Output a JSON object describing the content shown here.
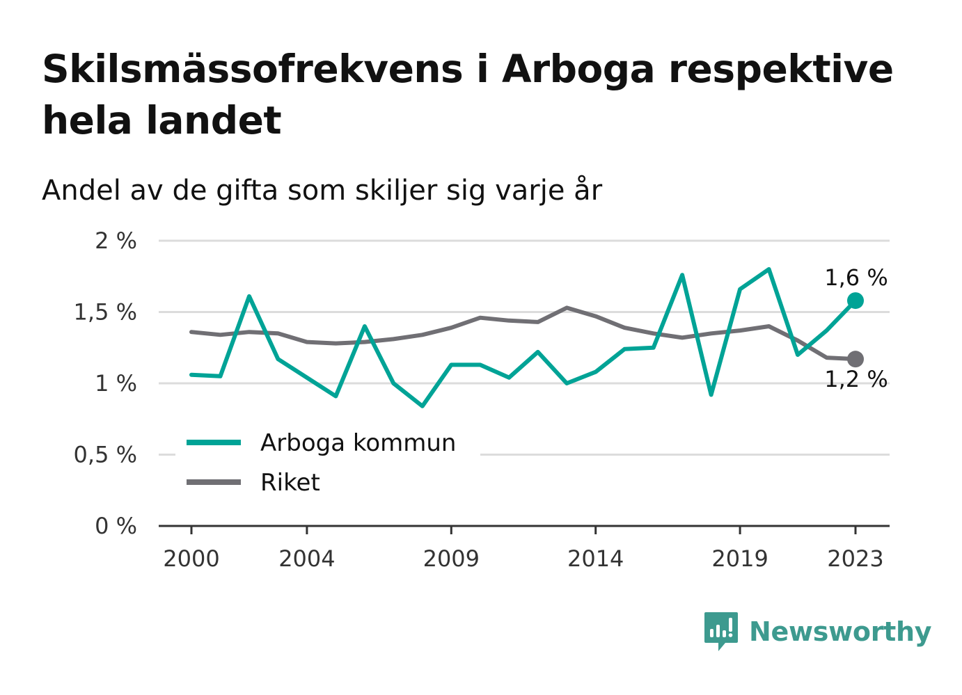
{
  "title": "Skilsmässofrekvens i Arboga respektive hela landet",
  "subtitle": "Andel av de gifta som skiljer sig varje år",
  "brand": {
    "name": "Newsworthy",
    "icon": "newsworthy-logo-icon",
    "color": "#3d9a8f"
  },
  "chart_data": {
    "type": "line",
    "x": [
      2000,
      2001,
      2002,
      2003,
      2004,
      2005,
      2006,
      2007,
      2008,
      2009,
      2010,
      2011,
      2012,
      2013,
      2014,
      2015,
      2016,
      2017,
      2018,
      2019,
      2020,
      2021,
      2022,
      2023
    ],
    "x_ticks": [
      2000,
      2004,
      2009,
      2014,
      2019,
      2023
    ],
    "x_tick_labels": [
      "2000",
      "2004",
      "2009",
      "2014",
      "2019",
      "2023"
    ],
    "ylim": [
      0,
      2
    ],
    "y_ticks": [
      0,
      0.5,
      1,
      1.5,
      2
    ],
    "y_tick_labels": [
      "0 %",
      "0,5 %",
      "1 %",
      "1,5 %",
      "2 %"
    ],
    "grid": true,
    "legend": "bottom-left",
    "series": [
      {
        "name": "Arboga kommun",
        "color": "#00a396",
        "values": [
          1.06,
          1.05,
          1.61,
          1.17,
          1.04,
          0.91,
          1.4,
          1.0,
          0.84,
          1.13,
          1.13,
          1.04,
          1.22,
          1.0,
          1.08,
          1.24,
          1.25,
          1.76,
          0.92,
          1.66,
          1.8,
          1.2,
          1.37,
          1.58
        ],
        "end_label": "1,6 %"
      },
      {
        "name": "Riket",
        "color": "#706f74",
        "values": [
          1.36,
          1.34,
          1.36,
          1.35,
          1.29,
          1.28,
          1.29,
          1.31,
          1.34,
          1.39,
          1.46,
          1.44,
          1.43,
          1.53,
          1.47,
          1.39,
          1.35,
          1.32,
          1.35,
          1.37,
          1.4,
          1.3,
          1.18,
          1.17
        ],
        "end_label": "1,2 %"
      }
    ]
  }
}
